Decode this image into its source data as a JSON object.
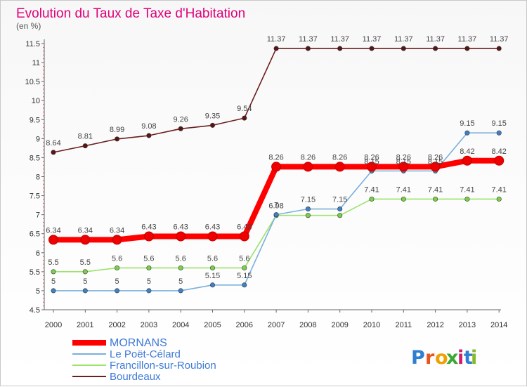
{
  "chart_data": {
    "type": "line",
    "title": "Evolution du Taux de Taxe d'Habitation",
    "subtitle": "(en %)",
    "xlabel": "",
    "ylabel": "",
    "x": [
      "2000",
      "2001",
      "2002",
      "2003",
      "2004",
      "2005",
      "2006",
      "2007",
      "2008",
      "2009",
      "2010",
      "2011",
      "2012",
      "2013",
      "2014"
    ],
    "ylim": [
      4.5,
      11.5
    ],
    "yticks": [
      "4.5",
      "5",
      "5.5",
      "6",
      "6.5",
      "7",
      "7.5",
      "8",
      "8.5",
      "9",
      "9.5",
      "10",
      "10.5",
      "11",
      "11.5"
    ],
    "grid": false,
    "legend_position": "bottom-left",
    "series": [
      {
        "name": "Bourdeaux",
        "color": "#6b1e1e",
        "marker": "#5a1414",
        "values": [
          8.64,
          8.81,
          8.99,
          9.08,
          9.26,
          9.35,
          9.54,
          11.37,
          11.37,
          11.37,
          11.37,
          11.37,
          11.37,
          11.37,
          11.37
        ],
        "labels": [
          "8.64",
          "8.81",
          "8.99",
          "9.08",
          "9.26",
          "9.35",
          "9.54",
          "11.37",
          "11.37",
          "11.37",
          "11.37",
          "11.37",
          "11.37",
          "11.37",
          "11.37"
        ]
      },
      {
        "name": "Francillon-sur-Roubion",
        "color": "#9be36a",
        "marker": "#7bd04a",
        "values": [
          5.5,
          5.5,
          5.6,
          5.6,
          5.6,
          5.6,
          5.6,
          6.98,
          6.98,
          6.98,
          7.41,
          7.41,
          7.41,
          7.41,
          7.41
        ],
        "labels": [
          "5.5",
          "5.5",
          "5.6",
          "5.6",
          "5.6",
          "5.6",
          "5.6",
          "6.98",
          "",
          "",
          "7.41",
          "7.41",
          "7.41",
          "7.41",
          "7.41"
        ]
      },
      {
        "name": "Le Poët-Célard",
        "color": "#7ab0dc",
        "marker": "#3d82c8",
        "values": [
          5,
          5,
          5,
          5,
          5,
          5.15,
          5.15,
          7,
          7.15,
          7.15,
          8.15,
          8.15,
          8.15,
          9.15,
          9.15
        ],
        "labels": [
          "5",
          "5",
          "5",
          "5",
          "5",
          "5.15",
          "5.15",
          "7",
          "7.15",
          "7.15",
          "8.15",
          "8.15",
          "8.15",
          "9.15",
          "9.15"
        ]
      },
      {
        "name": "MORNANS",
        "color": "#ff0000",
        "marker": "#ee0000",
        "values": [
          6.34,
          6.34,
          6.34,
          6.43,
          6.43,
          6.43,
          6.43,
          8.26,
          8.26,
          8.26,
          8.26,
          8.26,
          8.26,
          8.42,
          8.42
        ],
        "labels": [
          "6.34",
          "6.34",
          "6.34",
          "6.43",
          "6.43",
          "6.43",
          "6.43",
          "8.26",
          "8.26",
          "8.26",
          "8.26",
          "8.26",
          "8.26",
          "8.42",
          "8.42"
        ]
      }
    ],
    "legend": [
      "MORNANS",
      "Le Poët-Célard",
      "Francillon-sur-Roubion",
      "Bourdeaux"
    ]
  },
  "logo": {
    "text": "Proxiti",
    "letters": [
      "P",
      "r",
      "o",
      "x",
      "i",
      "t",
      "i"
    ],
    "colors": [
      "#2f7fd0",
      "#e8551a",
      "#f0a000",
      "#3aa832",
      "#d01f6a",
      "#2f7fd0",
      "#86b92e"
    ]
  }
}
